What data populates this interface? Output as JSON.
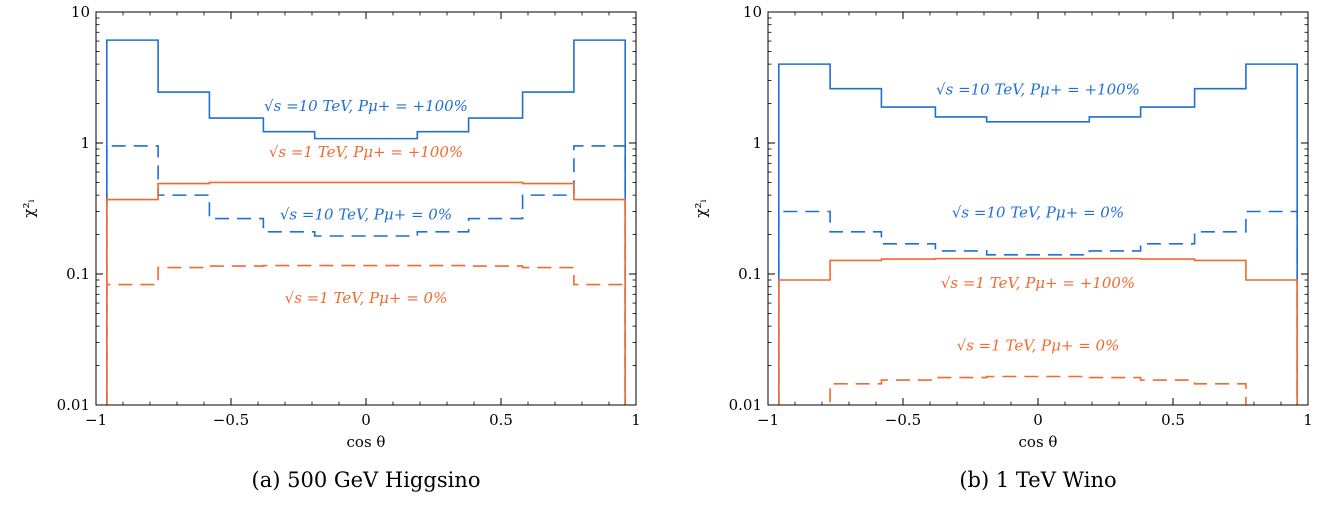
{
  "chart_data": [
    {
      "type": "line",
      "caption": "(a) 500 GeV Higgsino",
      "xlabel": "cos θ",
      "ylabel": "χ²ᵢ",
      "xlim": [
        -1,
        1
      ],
      "ylim": [
        0.01,
        10
      ],
      "yscale": "log",
      "xticks": [
        -1,
        -0.5,
        0,
        0.5,
        1
      ],
      "xtick_labels": [
        "−1",
        "−0.5",
        "0",
        "0.5",
        "1"
      ],
      "yticks": [
        0.01,
        0.1,
        1,
        10
      ],
      "ytick_labels": [
        "0.01",
        "0.1",
        "1",
        "10"
      ],
      "bin_edges": [
        -0.96,
        -0.77,
        -0.58,
        -0.38,
        -0.19,
        0,
        0.19,
        0.38,
        0.58,
        0.77,
        0.96
      ],
      "series": [
        {
          "name": "√s =10 TeV, Pμ+ = +100%",
          "color": "#1f6fd6",
          "dash": false,
          "values": [
            6.1,
            2.45,
            1.55,
            1.22,
            1.08,
            1.08,
            1.22,
            1.55,
            2.45,
            6.1
          ],
          "label_pos": [
            0.0,
            1.75
          ]
        },
        {
          "name": "√s =10 TeV, Pμ+ = 0%",
          "color": "#1f6fd6",
          "dash": true,
          "values": [
            0.95,
            0.4,
            0.265,
            0.21,
            0.195,
            0.195,
            0.21,
            0.265,
            0.4,
            0.95
          ],
          "label_pos": [
            0.0,
            0.26
          ]
        },
        {
          "name": "√s =1 TeV, Pμ+ = +100%",
          "color": "#f26a2e",
          "dash": false,
          "values": [
            0.37,
            0.49,
            0.5,
            0.5,
            0.5,
            0.5,
            0.5,
            0.5,
            0.49,
            0.37
          ],
          "label_pos": [
            0.0,
            0.78
          ]
        },
        {
          "name": "√s =1 TeV, Pμ+ = 0%",
          "color": "#f26a2e",
          "dash": true,
          "values": [
            0.083,
            0.112,
            0.115,
            0.116,
            0.116,
            0.116,
            0.116,
            0.115,
            0.112,
            0.083
          ],
          "label_pos": [
            0.0,
            0.06
          ]
        }
      ]
    },
    {
      "type": "line",
      "caption": "(b) 1 TeV Wino",
      "xlabel": "cos θ",
      "ylabel": "χ²ᵢ",
      "xlim": [
        -1,
        1
      ],
      "ylim": [
        0.01,
        10
      ],
      "yscale": "log",
      "xticks": [
        -1,
        -0.5,
        0,
        0.5,
        1
      ],
      "xtick_labels": [
        "−1",
        "−0.5",
        "0",
        "0.5",
        "1"
      ],
      "yticks": [
        0.01,
        0.1,
        1,
        10
      ],
      "ytick_labels": [
        "0.01",
        "0.1",
        "1",
        "10"
      ],
      "bin_edges": [
        -0.96,
        -0.77,
        -0.58,
        -0.38,
        -0.19,
        0,
        0.19,
        0.38,
        0.58,
        0.77,
        0.96
      ],
      "series": [
        {
          "name": "√s =10 TeV, Pμ+ = +100%",
          "color": "#1f6fd6",
          "dash": false,
          "values": [
            4.0,
            2.6,
            1.88,
            1.58,
            1.45,
            1.45,
            1.58,
            1.88,
            2.6,
            4.0
          ],
          "label_pos": [
            0.0,
            2.35
          ]
        },
        {
          "name": "√s =10 TeV, Pμ+ = 0%",
          "color": "#1f6fd6",
          "dash": true,
          "values": [
            0.3,
            0.21,
            0.17,
            0.15,
            0.14,
            0.14,
            0.15,
            0.17,
            0.21,
            0.3
          ],
          "label_pos": [
            0.0,
            0.27
          ]
        },
        {
          "name": "√s =1 TeV, Pμ+ = +100%",
          "color": "#f26a2e",
          "dash": false,
          "values": [
            0.09,
            0.127,
            0.13,
            0.131,
            0.131,
            0.131,
            0.131,
            0.13,
            0.127,
            0.09
          ],
          "label_pos": [
            0.0,
            0.078
          ]
        },
        {
          "name": "√s =1 TeV, Pμ+ = 0%",
          "color": "#f26a2e",
          "dash": true,
          "values": [
            0.009,
            0.0145,
            0.0155,
            0.0162,
            0.0165,
            0.0165,
            0.0162,
            0.0155,
            0.0145,
            0.009
          ],
          "label_pos": [
            0.0,
            0.026
          ]
        }
      ]
    }
  ]
}
